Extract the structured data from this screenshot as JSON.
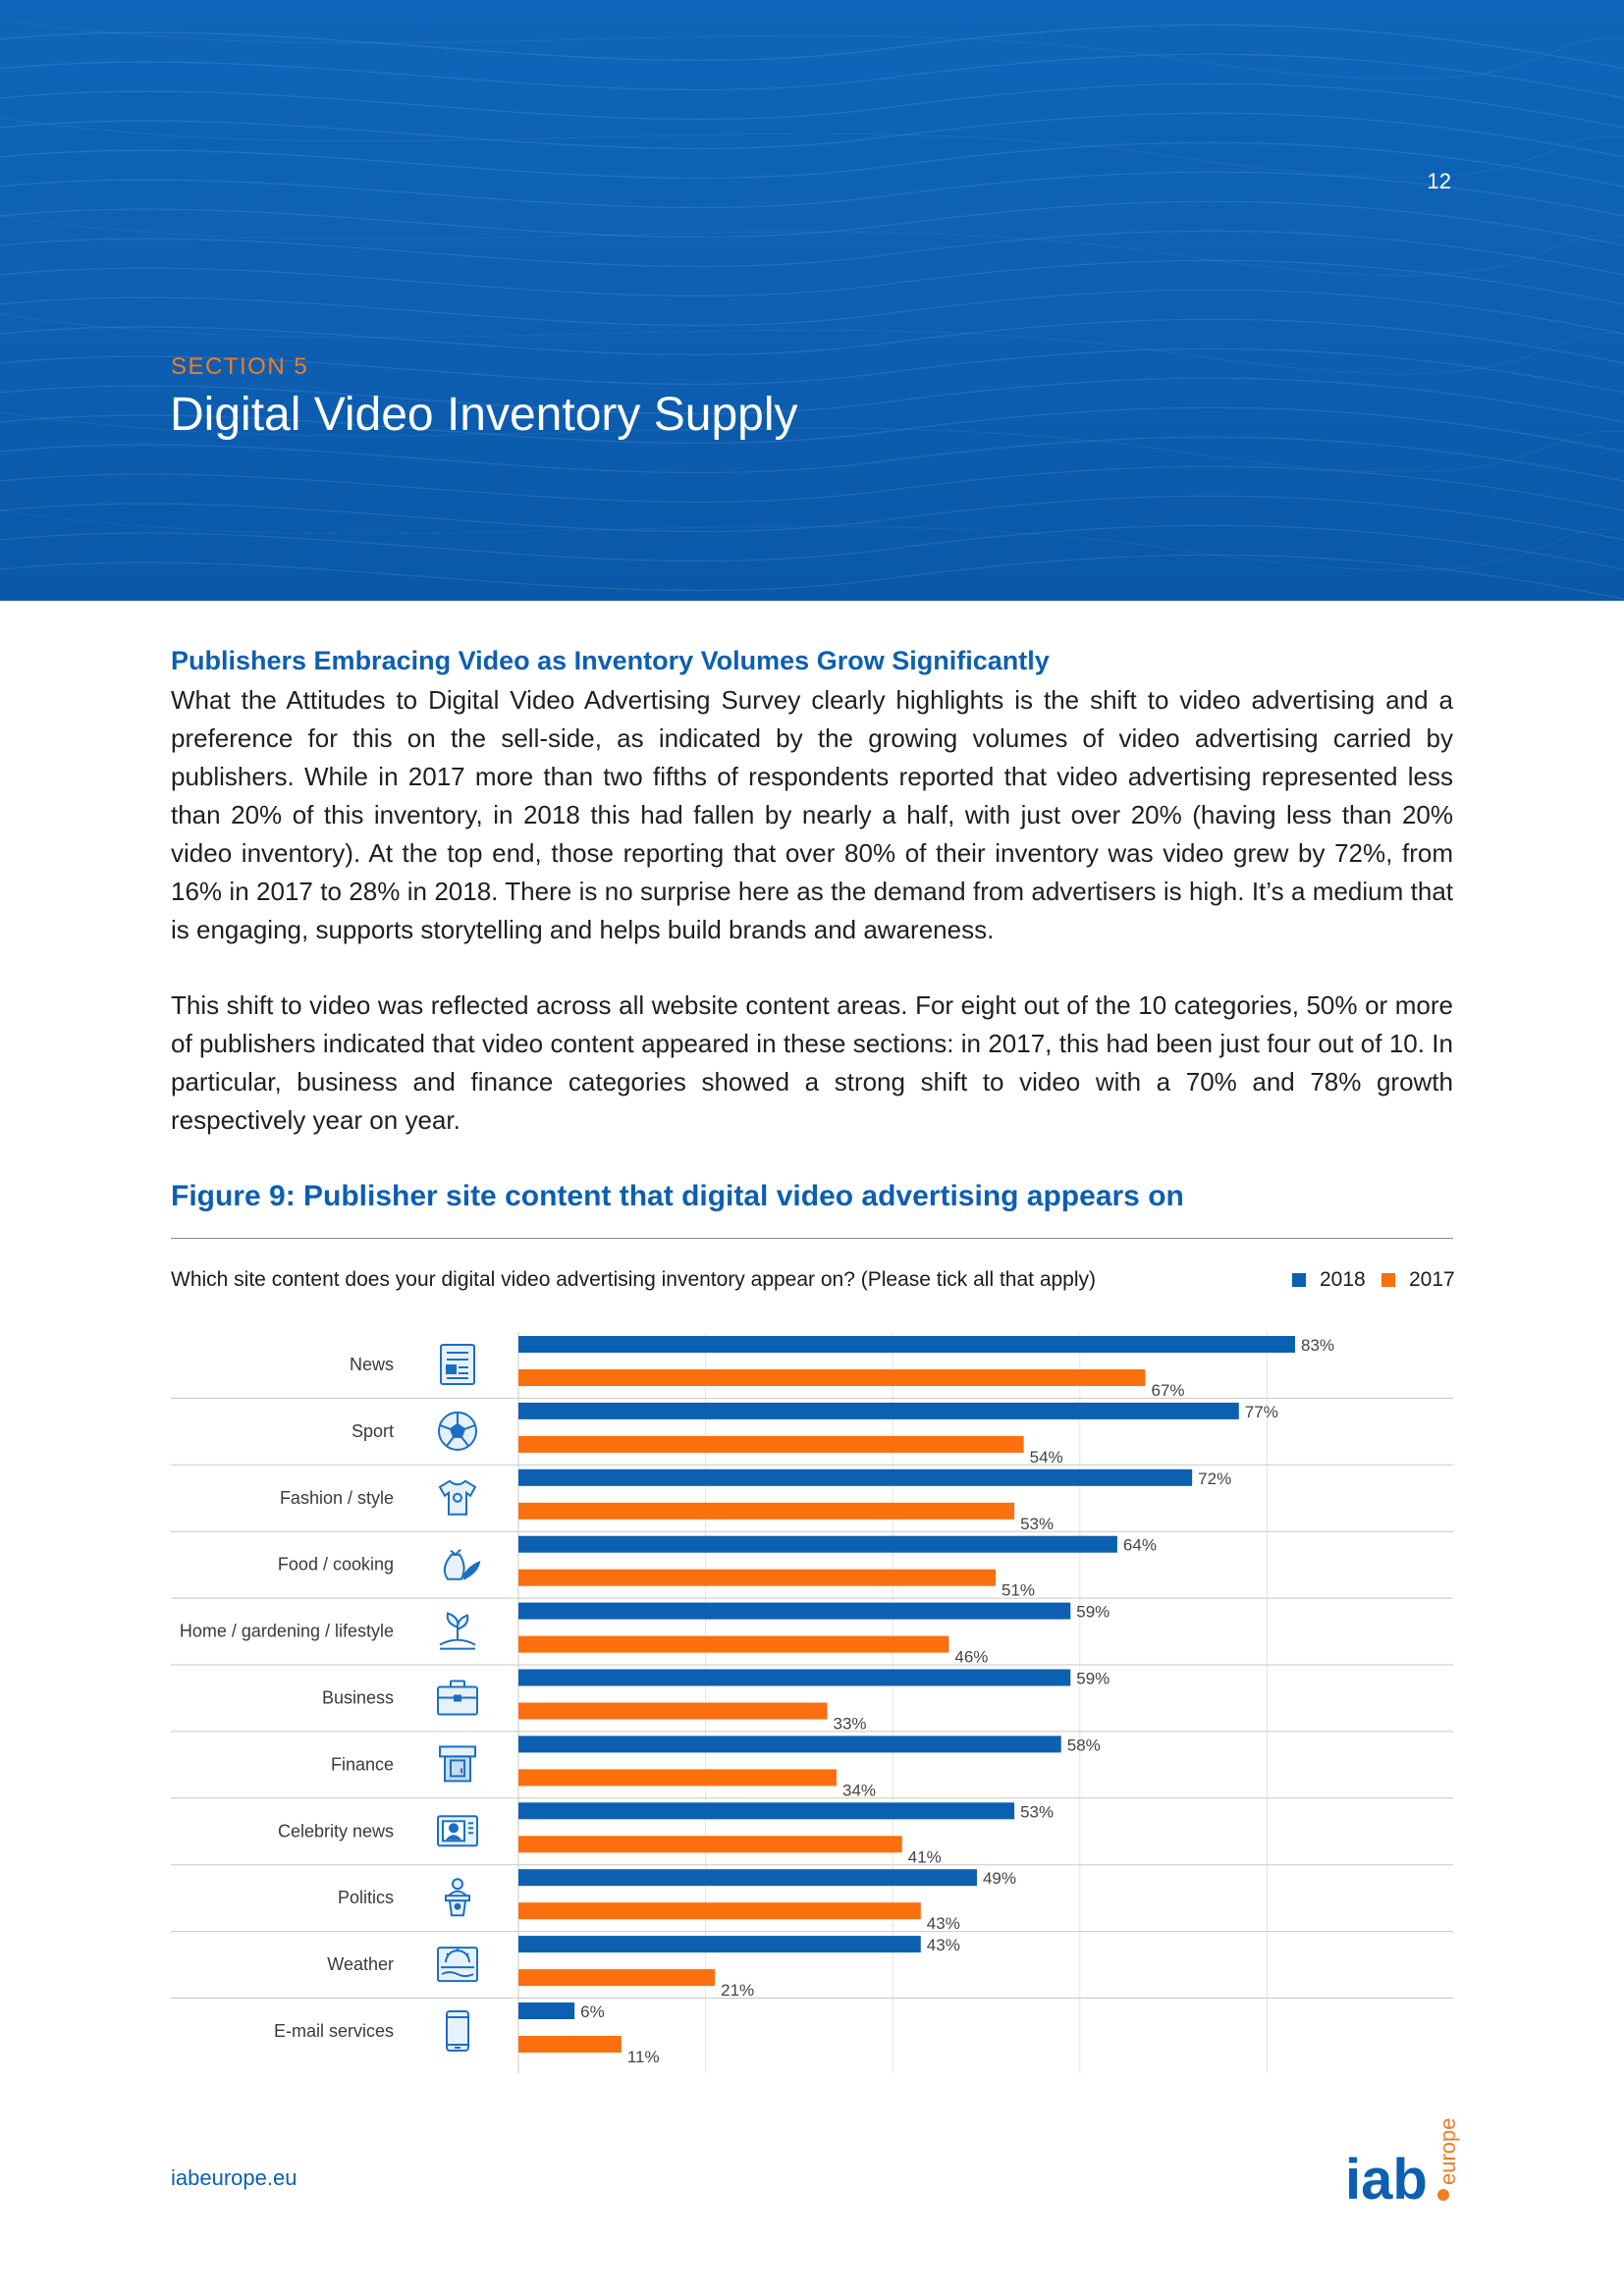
{
  "header": {
    "page_number": "12",
    "section_label": "SECTION 5",
    "section_title": "Digital Video Inventory Supply"
  },
  "article": {
    "subheading": "Publishers Embracing Video as Inventory Volumes Grow Significantly",
    "paragraph_1": "What the Attitudes to Digital Video Advertising Survey clearly highlights is the shift to video advertising and a preference for this on the sell-side, as indicated by the growing volumes of video advertising carried by publishers. While in 2017 more than two fifths of respondents reported that video advertising represented less than 20% of this inventory, in 2018 this had fallen by nearly a half, with just over 20% (having less than 20% video inventory). At the top end, those reporting that over 80% of their inventory was video grew by 72%, from 16% in 2017 to 28% in 2018. There is no surprise here as the demand from advertisers is high. It’s a medium that is engaging, supports storytelling and helps build brands and awareness.",
    "paragraph_2": "This shift to video was reflected across all website content areas. For eight out of the 10 categories, 50% or more of publishers indicated that video content appeared in these sections: in 2017, this had been just four out of 10. In particular, business and finance categories showed a strong shift to video with a 70% and 78% growth respectively year on year."
  },
  "figure": {
    "title": "Figure 9: Publisher site content that digital video advertising appears on",
    "question": "Which site content does your digital video advertising inventory appear on? (Please tick all that apply)"
  },
  "colors": {
    "series_2018": "#0d5fb2",
    "series_2017": "#fb6f0f",
    "accent_blue": "#0d5fb2",
    "accent_orange": "#f47b20"
  },
  "chart_data": {
    "type": "bar",
    "orientation": "horizontal",
    "title": "Figure 9: Publisher site content that digital video advertising appears on",
    "categories": [
      "News",
      "Sport",
      "Fashion / style",
      "Food / cooking",
      "Home / gardening / lifestyle",
      "Business",
      "Finance",
      "Celebrity news",
      "Politics",
      "Weather",
      "E-mail services"
    ],
    "icons": [
      "newspaper-icon",
      "football-icon",
      "tshirt-icon",
      "food-bag-icon",
      "plant-icon",
      "briefcase-icon",
      "atm-icon",
      "tv-celebrity-icon",
      "podium-icon",
      "weather-icon",
      "smartphone-icon"
    ],
    "series": [
      {
        "name": "2018",
        "values": [
          83,
          77,
          72,
          64,
          59,
          59,
          58,
          53,
          49,
          43,
          6
        ]
      },
      {
        "name": "2017",
        "values": [
          67,
          54,
          53,
          51,
          46,
          33,
          34,
          41,
          43,
          21,
          11
        ]
      }
    ],
    "value_suffix": "%",
    "xlim": [
      0,
      100
    ],
    "legend": "top-right",
    "grid": true
  },
  "footer": {
    "url": "iabeurope.eu",
    "logo_text": "iab",
    "logo_sub": "europe"
  }
}
